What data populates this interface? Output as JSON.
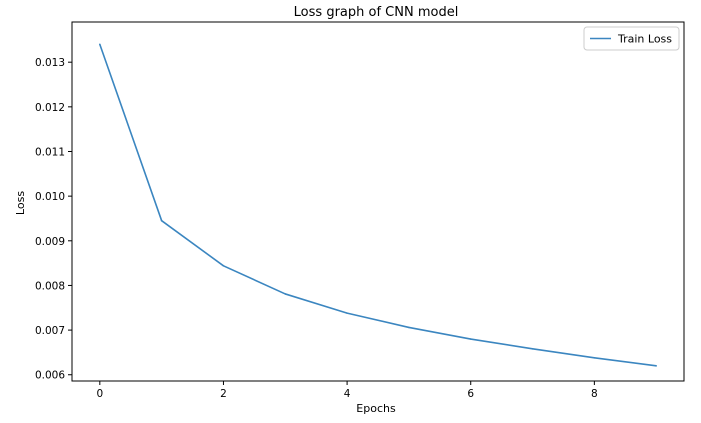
{
  "chart_data": {
    "type": "line",
    "title": "Loss graph of CNN model",
    "xlabel": "Epochs",
    "ylabel": "Loss",
    "x": [
      0,
      1,
      2,
      3,
      4,
      5,
      6,
      7,
      8,
      9
    ],
    "series": [
      {
        "name": "Train Loss",
        "color": "#3b86c0",
        "values": [
          0.0134,
          0.00945,
          0.00844,
          0.00781,
          0.00738,
          0.00706,
          0.0068,
          0.00658,
          0.00638,
          0.0062
        ]
      }
    ],
    "xlim": [
      -0.45,
      9.45
    ],
    "ylim": [
      0.00586,
      0.0139
    ],
    "xticks": [
      0,
      2,
      4,
      6,
      8
    ],
    "xtick_labels": [
      "0",
      "2",
      "4",
      "6",
      "8"
    ],
    "yticks": [
      0.006,
      0.007,
      0.008,
      0.009,
      0.01,
      0.011,
      0.012,
      0.013
    ],
    "ytick_labels": [
      "0.006",
      "0.007",
      "0.008",
      "0.009",
      "0.010",
      "0.011",
      "0.012",
      "0.013"
    ],
    "grid": false,
    "legend_position": "top-right"
  }
}
